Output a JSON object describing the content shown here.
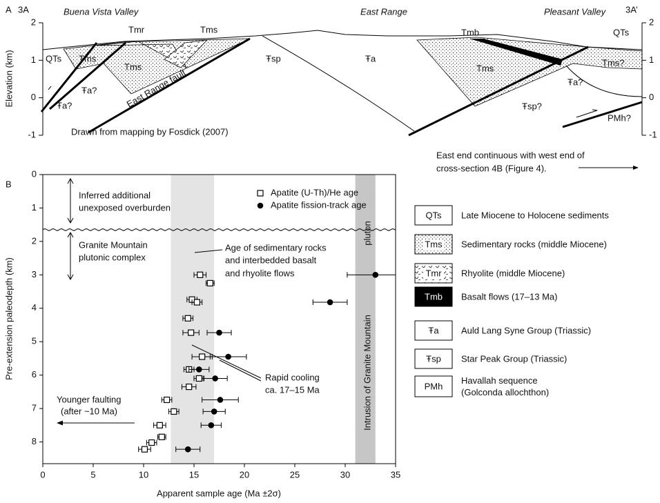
{
  "chart_data": [
    {
      "type": "cross-section",
      "ylabel": "Elevation (km)",
      "ylim": [
        -1,
        2
      ],
      "yticks": [
        -1,
        0,
        1,
        2
      ],
      "labels": [
        "A",
        "3A",
        "Buena Vista Valley",
        "East Range",
        "Pleasant Valley",
        "3A’",
        "QTs",
        "Tms",
        "Tmr",
        "Tms",
        "Tms",
        "Ŧa?",
        "Ŧa?",
        "East Range fault",
        "Ŧsp",
        "Ŧa",
        "Tmb",
        "QTs",
        "Tms",
        "Tms?",
        "Ŧa?",
        "Ŧsp?",
        "PMh?",
        "Drawn from mapping by Fosdick (2007)",
        "East end continuous with west end of",
        "cross-section 4B (Figure 4)."
      ]
    },
    {
      "type": "scatter",
      "panel_label": "B",
      "xlabel": "Apparent sample age (Ma ±2σ)",
      "ylabel": "Pre-extension paleodepth (km)",
      "xlim": [
        0,
        35
      ],
      "xticks": [
        0,
        5,
        10,
        15,
        20,
        25,
        30,
        35
      ],
      "ylim": [
        0,
        8.65
      ],
      "yticks": [
        0,
        1,
        2,
        3,
        4,
        5,
        6,
        7,
        8
      ],
      "y_inverted": true,
      "overburden_depth": 1.65,
      "bands": [
        {
          "range": [
            12.7,
            17.0
          ],
          "color": "#e4e4e4"
        },
        {
          "range": [
            31.0,
            33.0
          ],
          "color": "#c6c6c6"
        }
      ],
      "series": [
        {
          "name": "Apatite (U-Th)/He age",
          "color": "#000000",
          "marker": "square",
          "x": [
            15.6,
            16.6,
            14.8,
            15.3,
            14.4,
            14.7,
            15.8,
            14.5,
            15.5,
            14.5,
            12.3,
            13.0,
            11.6,
            11.8,
            10.8,
            10.1
          ],
          "values": [
            3.0,
            3.25,
            3.74,
            3.82,
            4.3,
            4.73,
            5.45,
            5.83,
            6.1,
            6.35,
            6.74,
            7.09,
            7.5,
            7.85,
            8.02,
            8.22
          ],
          "x_error": [
            0.6,
            0.4,
            0.5,
            0.5,
            0.5,
            0.8,
            1.0,
            0.5,
            0.5,
            0.7,
            0.5,
            0.5,
            0.6,
            0.4,
            0.5,
            0.6
          ]
        },
        {
          "name": "Apatite fission-track age",
          "color": "#000000",
          "marker": "circle",
          "x": [
            33.0,
            28.5,
            17.5,
            18.4,
            15.5,
            17.1,
            17.6,
            17.0,
            16.7,
            14.4
          ],
          "values": [
            3.0,
            3.82,
            4.73,
            5.45,
            5.83,
            6.1,
            6.74,
            7.09,
            7.5,
            8.22
          ],
          "x_error": [
            2.8,
            1.7,
            1.2,
            1.8,
            1.0,
            1.2,
            1.8,
            1.1,
            1.0,
            1.2
          ]
        }
      ],
      "annotations": [
        "Inferred additional",
        "unexposed overburden",
        "Granite Mountain",
        "plutonic complex",
        "Age of sedimentary rocks",
        "and interbedded basalt",
        "and rhyolite flows",
        "Rapid cooling",
        "ca. 17–15 Ma",
        "Younger faulting",
        "(after ~10 Ma)",
        "pluton",
        "Intrusion of Granite Mountain"
      ],
      "units": [
        {
          "symbol": "QTs",
          "lines": [
            "Late Miocene to Holocene sediments"
          ]
        },
        {
          "symbol": "Tms",
          "lines": [
            "Sedimentary rocks (middle Miocene)"
          ]
        },
        {
          "symbol": "Tmr",
          "lines": [
            "Rhyolite (middle Miocene)"
          ]
        },
        {
          "symbol": "Tmb",
          "lines": [
            "Basalt flows (17–13 Ma)"
          ]
        },
        {
          "symbol": "Ŧa",
          "lines": [
            "Auld Lang Syne Group (Triassic)"
          ]
        },
        {
          "symbol": "Ŧsp",
          "lines": [
            "Star Peak Group (Triassic)"
          ]
        },
        {
          "symbol": "PMh",
          "lines": [
            "Havallah sequence",
            "(Golconda allochthon)"
          ]
        }
      ]
    }
  ]
}
